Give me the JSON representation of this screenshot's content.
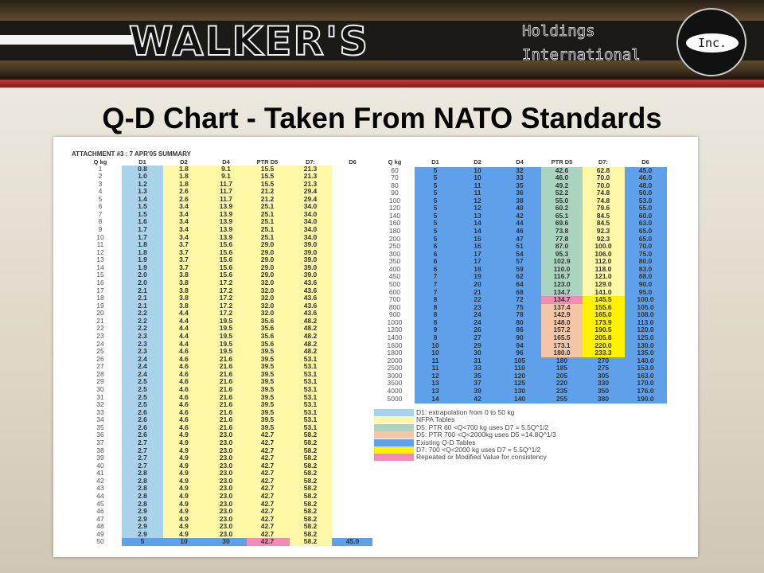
{
  "banner": {
    "brand": "WALKER'S",
    "line1": "Holdings",
    "line2": "International",
    "badge": "Inc."
  },
  "slide": {
    "title": "Q-D Chart - Taken From NATO Standards"
  },
  "colors": {
    "d1_extrapolation": "#a9d3ea",
    "nfpa": "#fdf7a6",
    "ptr_low": "#a9d4bf",
    "ptr_high": "#f4c6a6",
    "existing_qd": "#5fa0ea",
    "d7_high": "#fff200",
    "repeated": "#f08db5"
  },
  "left_table": {
    "caption": "ATTACHMENT #3 : 7 APR'05 SUMMARY",
    "headers": [
      "Q kg",
      "D1",
      "D2",
      "D4",
      "PTR D5",
      "D7:",
      "D6"
    ],
    "rows": [
      [
        "1",
        "0.8",
        "1.8",
        "9.1",
        "15.5",
        "21.3",
        ""
      ],
      [
        "2",
        "1.0",
        "1.8",
        "9.1",
        "15.5",
        "21.3",
        ""
      ],
      [
        "3",
        "1.2",
        "1.8",
        "11.7",
        "15.5",
        "21.3",
        ""
      ],
      [
        "4",
        "1.3",
        "2.6",
        "11.7",
        "21.2",
        "29.4",
        ""
      ],
      [
        "5",
        "1.4",
        "2.6",
        "11.7",
        "21.2",
        "29.4",
        ""
      ],
      [
        "6",
        "1.5",
        "3.4",
        "13.9",
        "25.1",
        "34.0",
        ""
      ],
      [
        "7",
        "1.5",
        "3.4",
        "13.9",
        "25.1",
        "34.0",
        ""
      ],
      [
        "8",
        "1.6",
        "3.4",
        "13.9",
        "25.1",
        "34.0",
        ""
      ],
      [
        "9",
        "1.7",
        "3.4",
        "13.9",
        "25.1",
        "34.0",
        ""
      ],
      [
        "10",
        "1.7",
        "3.4",
        "13.9",
        "25.1",
        "34.0",
        ""
      ],
      [
        "11",
        "1.8",
        "3.7",
        "15.6",
        "29.0",
        "39.0",
        ""
      ],
      [
        "12",
        "1.8",
        "3.7",
        "15.6",
        "29.0",
        "39.0",
        ""
      ],
      [
        "13",
        "1.9",
        "3.7",
        "15.6",
        "29.0",
        "39.0",
        ""
      ],
      [
        "14",
        "1.9",
        "3.7",
        "15.6",
        "29.0",
        "39.0",
        ""
      ],
      [
        "15",
        "2.0",
        "3.8",
        "15.6",
        "29.0",
        "39.0",
        ""
      ],
      [
        "16",
        "2.0",
        "3.8",
        "17.2",
        "32.0",
        "43.6",
        ""
      ],
      [
        "17",
        "2.1",
        "3.8",
        "17.2",
        "32.0",
        "43.6",
        ""
      ],
      [
        "18",
        "2.1",
        "3.8",
        "17.2",
        "32.0",
        "43.6",
        ""
      ],
      [
        "19",
        "2.1",
        "3.8",
        "17.2",
        "32.0",
        "43.6",
        ""
      ],
      [
        "20",
        "2.2",
        "4.4",
        "17.2",
        "32.0",
        "43.6",
        ""
      ],
      [
        "21",
        "2.2",
        "4.4",
        "19.5",
        "35.6",
        "48.2",
        ""
      ],
      [
        "22",
        "2.2",
        "4.4",
        "19.5",
        "35.6",
        "48.2",
        ""
      ],
      [
        "23",
        "2.3",
        "4.4",
        "19.5",
        "35.6",
        "48.2",
        ""
      ],
      [
        "24",
        "2.3",
        "4.4",
        "19.5",
        "35.6",
        "48.2",
        ""
      ],
      [
        "25",
        "2.3",
        "4.6",
        "19.5",
        "39.5",
        "48.2",
        ""
      ],
      [
        "26",
        "2.4",
        "4.6",
        "21.6",
        "39.5",
        "53.1",
        ""
      ],
      [
        "27",
        "2.4",
        "4.6",
        "21.6",
        "39.5",
        "53.1",
        ""
      ],
      [
        "28",
        "2.4",
        "4.6",
        "21.6",
        "39.5",
        "53.1",
        ""
      ],
      [
        "29",
        "2.5",
        "4.6",
        "21.6",
        "39.5",
        "53.1",
        ""
      ],
      [
        "30",
        "2.5",
        "4.6",
        "21.6",
        "39.5",
        "53.1",
        ""
      ],
      [
        "31",
        "2.5",
        "4.6",
        "21.6",
        "39.5",
        "53.1",
        ""
      ],
      [
        "32",
        "2.5",
        "4.6",
        "21.6",
        "39.5",
        "53.1",
        ""
      ],
      [
        "33",
        "2.6",
        "4.6",
        "21.6",
        "39.5",
        "53.1",
        ""
      ],
      [
        "34",
        "2.6",
        "4.6",
        "21.6",
        "39.5",
        "53.1",
        ""
      ],
      [
        "35",
        "2.6",
        "4.6",
        "21.6",
        "39.5",
        "53.1",
        ""
      ],
      [
        "36",
        "2.6",
        "4.9",
        "23.0",
        "42.7",
        "58.2",
        ""
      ],
      [
        "37",
        "2.7",
        "4.9",
        "23.0",
        "42.7",
        "58.2",
        ""
      ],
      [
        "38",
        "2.7",
        "4.9",
        "23.0",
        "42.7",
        "58.2",
        ""
      ],
      [
        "39",
        "2.7",
        "4.9",
        "23.0",
        "42.7",
        "58.2",
        ""
      ],
      [
        "40",
        "2.7",
        "4.9",
        "23.0",
        "42.7",
        "58.2",
        ""
      ],
      [
        "41",
        "2.8",
        "4.9",
        "23.0",
        "42.7",
        "58.2",
        ""
      ],
      [
        "42",
        "2.8",
        "4.9",
        "23.0",
        "42.7",
        "58.2",
        ""
      ],
      [
        "43",
        "2.8",
        "4.9",
        "23.0",
        "42.7",
        "58.2",
        ""
      ],
      [
        "44",
        "2.8",
        "4.9",
        "23.0",
        "42.7",
        "58.2",
        ""
      ],
      [
        "45",
        "2.8",
        "4.9",
        "23.0",
        "42.7",
        "58.2",
        ""
      ],
      [
        "46",
        "2.9",
        "4.9",
        "23.0",
        "42.7",
        "58.2",
        ""
      ],
      [
        "47",
        "2.9",
        "4.9",
        "23.0",
        "42.7",
        "58.2",
        ""
      ],
      [
        "48",
        "2.9",
        "4.9",
        "23.0",
        "42.7",
        "58.2",
        ""
      ],
      [
        "49",
        "2.9",
        "4.9",
        "23.0",
        "42.7",
        "58.2",
        ""
      ],
      [
        "50",
        "5",
        "10",
        "30",
        "42.7",
        "58.2",
        "45.0"
      ]
    ]
  },
  "right_table": {
    "headers": [
      "Q kg",
      "D1",
      "D2",
      "D4",
      "PTR D5",
      "D7:",
      "D6"
    ],
    "rows": [
      [
        "60",
        "5",
        "10",
        "32",
        "42.6",
        "62.8",
        "45.0"
      ],
      [
        "70",
        "5",
        "10",
        "33",
        "46.0",
        "70.0",
        "46.0"
      ],
      [
        "80",
        "5",
        "11",
        "35",
        "49.2",
        "70.0",
        "48.0"
      ],
      [
        "90",
        "5",
        "11",
        "36",
        "52.2",
        "74.8",
        "50.0"
      ],
      [
        "100",
        "5",
        "12",
        "38",
        "55.0",
        "74.8",
        "53.0"
      ],
      [
        "120",
        "5",
        "12",
        "40",
        "60.2",
        "79.6",
        "55.0"
      ],
      [
        "140",
        "5",
        "13",
        "42",
        "65.1",
        "84.5",
        "60.0"
      ],
      [
        "160",
        "5",
        "14",
        "44",
        "69.6",
        "84.5",
        "63.0"
      ],
      [
        "180",
        "5",
        "14",
        "46",
        "73.8",
        "92.3",
        "65.0"
      ],
      [
        "200",
        "5",
        "15",
        "47",
        "77.8",
        "92.3",
        "65.0"
      ],
      [
        "250",
        "6",
        "16",
        "51",
        "87.0",
        "100.0",
        "70.0"
      ],
      [
        "300",
        "6",
        "17",
        "54",
        "95.3",
        "106.0",
        "75.0"
      ],
      [
        "350",
        "6",
        "17",
        "57",
        "102.9",
        "112.0",
        "80.0"
      ],
      [
        "400",
        "6",
        "18",
        "59",
        "110.0",
        "118.0",
        "83.0"
      ],
      [
        "450",
        "7",
        "19",
        "62",
        "116.7",
        "121.0",
        "88.0"
      ],
      [
        "500",
        "7",
        "20",
        "64",
        "123.0",
        "129.0",
        "90.0"
      ],
      [
        "600",
        "7",
        "21",
        "68",
        "134.7",
        "141.0",
        "95.0"
      ],
      [
        "700",
        "8",
        "22",
        "72",
        "134.7",
        "145.5",
        "100.0"
      ],
      [
        "800",
        "8",
        "23",
        "75",
        "137.4",
        "155.6",
        "105.0"
      ],
      [
        "900",
        "8",
        "24",
        "78",
        "142.9",
        "165.0",
        "108.0"
      ],
      [
        "1000",
        "8",
        "24",
        "80",
        "148.0",
        "173.9",
        "113.0"
      ],
      [
        "1200",
        "9",
        "26",
        "86",
        "157.2",
        "190.5",
        "120.0"
      ],
      [
        "1400",
        "9",
        "27",
        "90",
        "165.5",
        "205.8",
        "125.0"
      ],
      [
        "1600",
        "10",
        "29",
        "94",
        "173.1",
        "220.0",
        "130.0"
      ],
      [
        "1800",
        "10",
        "30",
        "96",
        "180.0",
        "233.3",
        "135.0"
      ],
      [
        "2000",
        "11",
        "31",
        "105",
        "180",
        "270",
        "140.0"
      ],
      [
        "2500",
        "11",
        "33",
        "110",
        "185",
        "275",
        "153.0"
      ],
      [
        "3000",
        "12",
        "35",
        "120",
        "205",
        "305",
        "163.0"
      ],
      [
        "3500",
        "13",
        "37",
        "125",
        "220",
        "330",
        "170.0"
      ],
      [
        "4000",
        "13",
        "39",
        "130",
        "235",
        "350",
        "176.0"
      ],
      [
        "5000",
        "14",
        "42",
        "140",
        "255",
        "380",
        "190.0"
      ]
    ]
  },
  "legend": [
    {
      "key": "d1_extrapolation",
      "text": "D1: extrapolation from 0 to 50 kg"
    },
    {
      "key": "nfpa",
      "text": "NFPA Tables"
    },
    {
      "key": "ptr_low",
      "text": "D5: PTR  60 <Q<700 kg  uses D7 = 5.5Q^1/2"
    },
    {
      "key": "ptr_high",
      "text": "D5: PTR 700 <Q<2000kg  uses D5 =14.8Q^1/3"
    },
    {
      "key": "existing_qd",
      "text": "Existing Q-D Tables"
    },
    {
      "key": "d7_high",
      "text": "D7: 700 <Q<2000 kg  uses D7 = 5.5Q^1/2"
    },
    {
      "key": "repeated",
      "text": "Repeated or Modified Value for consistency"
    }
  ]
}
